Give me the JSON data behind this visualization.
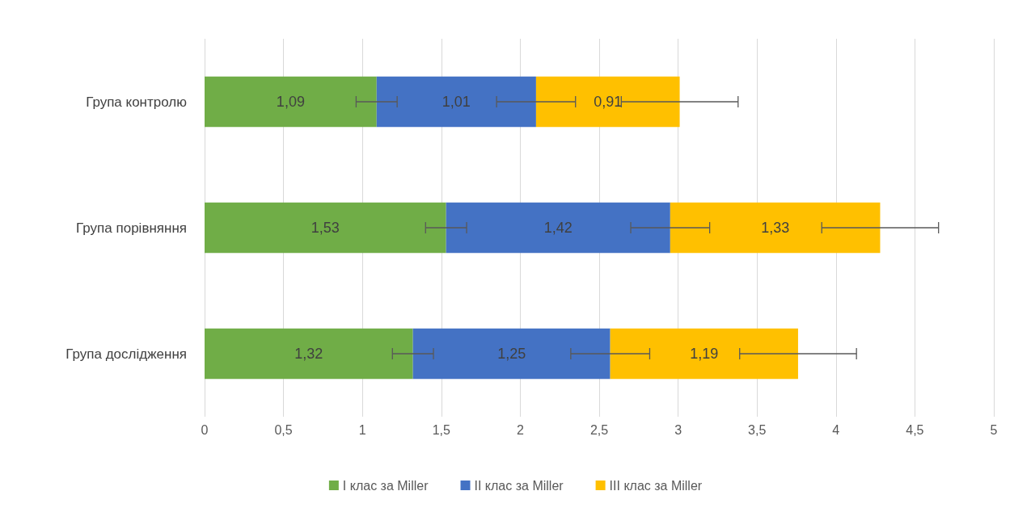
{
  "chart_data": {
    "type": "bar",
    "orientation": "horizontal",
    "stacked": true,
    "categories": [
      "Група контролю",
      "Група порівняння",
      "Група дослідження"
    ],
    "series": [
      {
        "name": "I клас за Miller",
        "color": "#70ad47",
        "values": [
          1.09,
          1.53,
          1.32
        ],
        "value_labels": [
          "1,09",
          "1,53",
          "1,32"
        ],
        "errors": [
          0.13,
          0.13,
          0.13
        ]
      },
      {
        "name": "II клас за Miller",
        "color": "#4472c4",
        "values": [
          1.01,
          1.42,
          1.25
        ],
        "value_labels": [
          "1,01",
          "1,42",
          "1,25"
        ],
        "errors": [
          0.25,
          0.25,
          0.25
        ]
      },
      {
        "name": "III клас за Miller",
        "color": "#ffc000",
        "values": [
          0.91,
          1.33,
          1.19
        ],
        "value_labels": [
          "0,91",
          "1,33",
          "1,19"
        ],
        "errors": [
          0.37,
          0.37,
          0.37
        ]
      }
    ],
    "xlim": [
      0,
      5
    ],
    "xticks": [
      0,
      {
        "value": 0.5,
        "label": "0,5"
      },
      1,
      {
        "value": 1.5,
        "label": "1,5"
      },
      2,
      {
        "value": 2.5,
        "label": "2,5"
      },
      3,
      {
        "value": 3.5,
        "label": "3,5"
      },
      4,
      {
        "value": 4.5,
        "label": "4,5"
      },
      5
    ],
    "grid": "x",
    "legend": "bottom"
  }
}
